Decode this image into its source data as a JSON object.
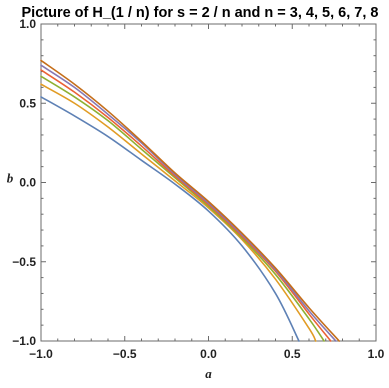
{
  "chart_data": {
    "type": "line",
    "title": "Picture of H_(1 / n) for s = 2 / n and n = 3,  4,  5,  6,  7,  8",
    "xlabel": "a",
    "ylabel": "b",
    "xlim": [
      -1.0,
      1.0
    ],
    "ylim": [
      -1.0,
      1.0
    ],
    "x_ticks": [
      -1.0,
      -0.5,
      0.0,
      0.5,
      1.0
    ],
    "y_ticks": [
      -1.0,
      -0.5,
      0.0,
      0.5,
      1.0
    ],
    "x_tick_labels": [
      "−1.0",
      "−0.5",
      "0.0",
      "0.5",
      "1.0"
    ],
    "y_tick_labels": [
      "−1.0",
      "−0.5",
      "0.0",
      "0.5",
      "1.0"
    ],
    "grid": false,
    "legend": "none",
    "series": [
      {
        "color": "#5e81b5",
        "x": [
          -1.0,
          -0.8,
          -0.6,
          -0.4,
          -0.2,
          0.0,
          0.2,
          0.4,
          0.54
        ],
        "y": [
          0.54,
          0.42,
          0.29,
          0.14,
          -0.01,
          -0.18,
          -0.4,
          -0.7,
          -1.0
        ]
      },
      {
        "color": "#e19c24",
        "x": [
          -1.0,
          -0.8,
          -0.6,
          -0.4,
          -0.2,
          0.0,
          0.2,
          0.4,
          0.6,
          0.64
        ],
        "y": [
          0.62,
          0.5,
          0.35,
          0.18,
          0.01,
          -0.16,
          -0.36,
          -0.61,
          -0.92,
          -1.0
        ]
      },
      {
        "color": "#8fb032",
        "x": [
          -1.0,
          -0.8,
          -0.6,
          -0.4,
          -0.2,
          0.0,
          0.2,
          0.4,
          0.6,
          0.69
        ],
        "y": [
          0.67,
          0.54,
          0.39,
          0.21,
          0.03,
          -0.15,
          -0.35,
          -0.58,
          -0.86,
          -1.0
        ]
      },
      {
        "color": "#eb6235",
        "x": [
          -1.0,
          -0.8,
          -0.6,
          -0.4,
          -0.2,
          0.0,
          0.2,
          0.4,
          0.6,
          0.73
        ],
        "y": [
          0.71,
          0.57,
          0.41,
          0.23,
          0.04,
          -0.14,
          -0.34,
          -0.56,
          -0.83,
          -1.0
        ]
      },
      {
        "color": "#8778b3",
        "x": [
          -1.0,
          -0.8,
          -0.6,
          -0.4,
          -0.2,
          0.0,
          0.2,
          0.4,
          0.6,
          0.76
        ],
        "y": [
          0.74,
          0.6,
          0.43,
          0.25,
          0.05,
          -0.13,
          -0.33,
          -0.55,
          -0.81,
          -1.0
        ]
      },
      {
        "color": "#c56e1a",
        "x": [
          -1.0,
          -0.8,
          -0.6,
          -0.4,
          -0.2,
          0.0,
          0.2,
          0.4,
          0.6,
          0.78
        ],
        "y": [
          0.77,
          0.62,
          0.45,
          0.26,
          0.06,
          -0.12,
          -0.32,
          -0.54,
          -0.79,
          -1.0
        ]
      }
    ]
  }
}
